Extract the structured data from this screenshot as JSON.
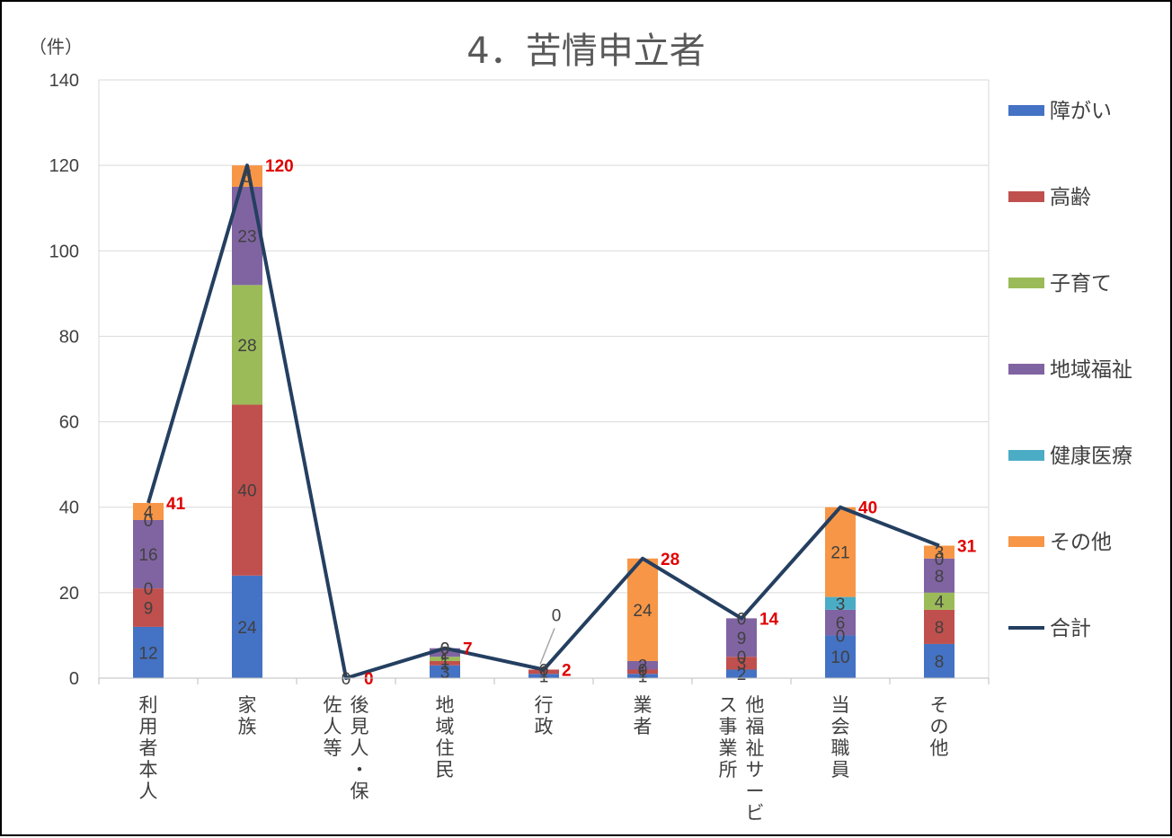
{
  "chart_data": {
    "type": "bar",
    "stacked": true,
    "title": "4．苦情申立者",
    "ylabel": "（件）",
    "ylim": [
      0,
      140
    ],
    "yticks": [
      0,
      20,
      40,
      60,
      80,
      100,
      120,
      140
    ],
    "grid": true,
    "legend_position": "right",
    "categories": [
      "利用者本人",
      "家族",
      "後見人・保佐人等",
      "地域住民",
      "行政",
      "業者",
      "他福祉サービス事業所",
      "当会職員",
      "その他"
    ],
    "category_lines": [
      [
        "利用者本人"
      ],
      [
        "家族"
      ],
      [
        "後見人・保",
        "佐人等"
      ],
      [
        "地域住民"
      ],
      [
        "行政"
      ],
      [
        "業者"
      ],
      [
        "他福祉サービ",
        "ス事業所"
      ],
      [
        "当会職員"
      ],
      [
        "その他"
      ]
    ],
    "series": [
      {
        "name": "障がい",
        "color": "#4472c4",
        "values": [
          12,
          24,
          0,
          3,
          1,
          1,
          2,
          10,
          8
        ]
      },
      {
        "name": "高齢",
        "color": "#c0504d",
        "values": [
          9,
          40,
          0,
          1,
          1,
          1,
          3,
          0,
          8
        ]
      },
      {
        "name": "子育て",
        "color": "#9bbb59",
        "values": [
          0,
          28,
          0,
          1,
          0,
          0,
          0,
          0,
          4
        ]
      },
      {
        "name": "地域福祉",
        "color": "#8064a2",
        "values": [
          16,
          23,
          0,
          2,
          0,
          2,
          9,
          6,
          8
        ]
      },
      {
        "name": "健康医療",
        "color": "#4bacc6",
        "values": [
          0,
          0,
          0,
          0,
          0,
          0,
          0,
          3,
          0
        ]
      },
      {
        "name": "その他",
        "color": "#f79646",
        "values": [
          4,
          5,
          0,
          0,
          0,
          24,
          0,
          21,
          3
        ]
      }
    ],
    "total_series": {
      "name": "合計",
      "color": "#243f60",
      "values": [
        41,
        120,
        0,
        7,
        2,
        28,
        14,
        40,
        31
      ]
    },
    "total_labels": [
      "41",
      "120",
      "0",
      "7",
      "2",
      "28",
      "14",
      "40",
      "31"
    ],
    "segment_labels": [
      [
        "12",
        "9",
        "0",
        "16",
        "0",
        "4"
      ],
      [
        "24",
        "40",
        "28",
        "23",
        "",
        "5"
      ],
      [
        "",
        "",
        "",
        "",
        "",
        "0"
      ],
      [
        "3",
        "1",
        "1",
        "2",
        "0",
        "0"
      ],
      [
        "1",
        "1",
        "",
        "",
        "",
        "0"
      ],
      [
        "1",
        "1",
        "0",
        "2",
        "",
        "24"
      ],
      [
        "2",
        "3",
        "0",
        "9",
        "",
        "0"
      ],
      [
        "10",
        "0",
        "",
        "6",
        "3",
        "21"
      ],
      [
        "8",
        "8",
        "4",
        "8",
        "0",
        "3"
      ]
    ]
  }
}
